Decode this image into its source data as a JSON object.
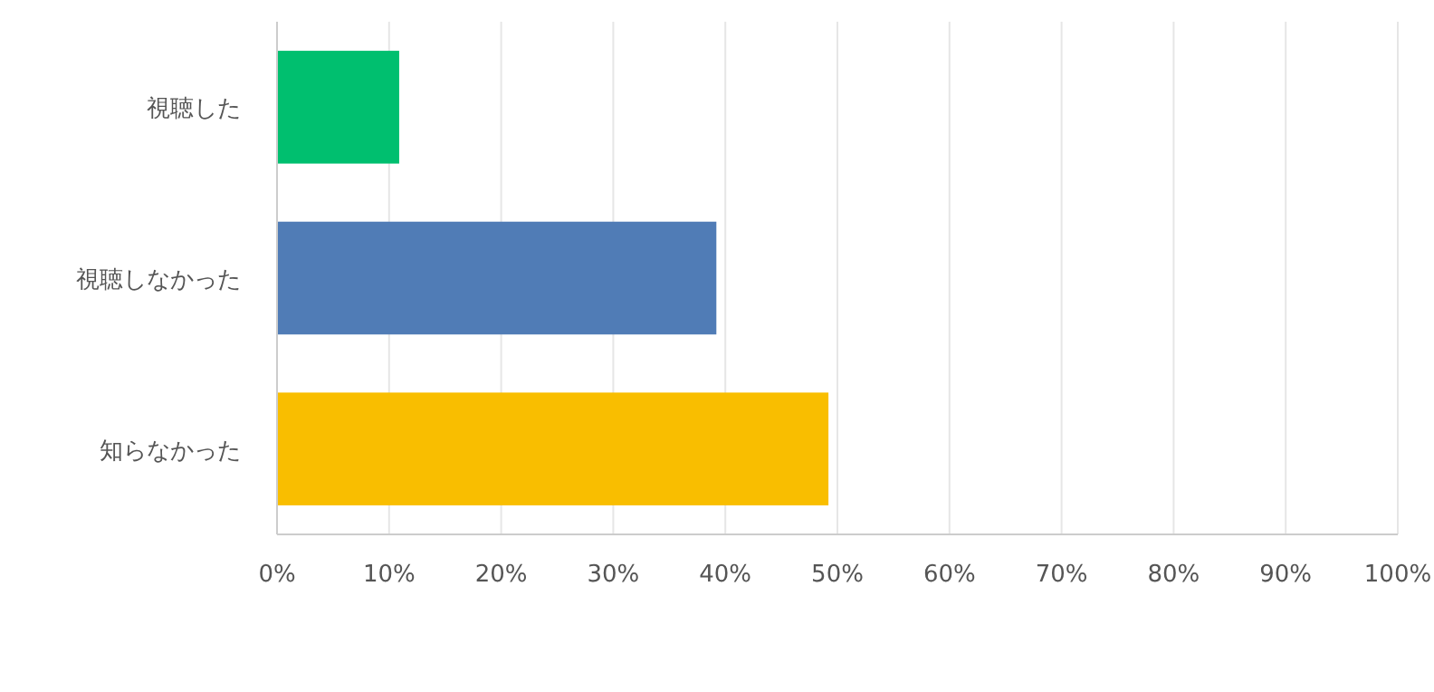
{
  "chart_data": {
    "type": "bar",
    "orientation": "horizontal",
    "categories": [
      "視聴した",
      "視聴しなかった",
      "知らなかった"
    ],
    "values": [
      10.9,
      39.2,
      49.2
    ],
    "colors": [
      "#00bf6f",
      "#507cb6",
      "#f9be00"
    ],
    "xlim": [
      0,
      100
    ],
    "xticks": [
      {
        "value": 0,
        "label": "0%"
      },
      {
        "value": 10,
        "label": "10%"
      },
      {
        "value": 20,
        "label": "20%"
      },
      {
        "value": 30,
        "label": "30%"
      },
      {
        "value": 40,
        "label": "40%"
      },
      {
        "value": 50,
        "label": "50%"
      },
      {
        "value": 60,
        "label": "60%"
      },
      {
        "value": 70,
        "label": "70%"
      },
      {
        "value": 80,
        "label": "80%"
      },
      {
        "value": 90,
        "label": "90%"
      },
      {
        "value": 100,
        "label": "100%"
      }
    ],
    "grid": "x"
  }
}
